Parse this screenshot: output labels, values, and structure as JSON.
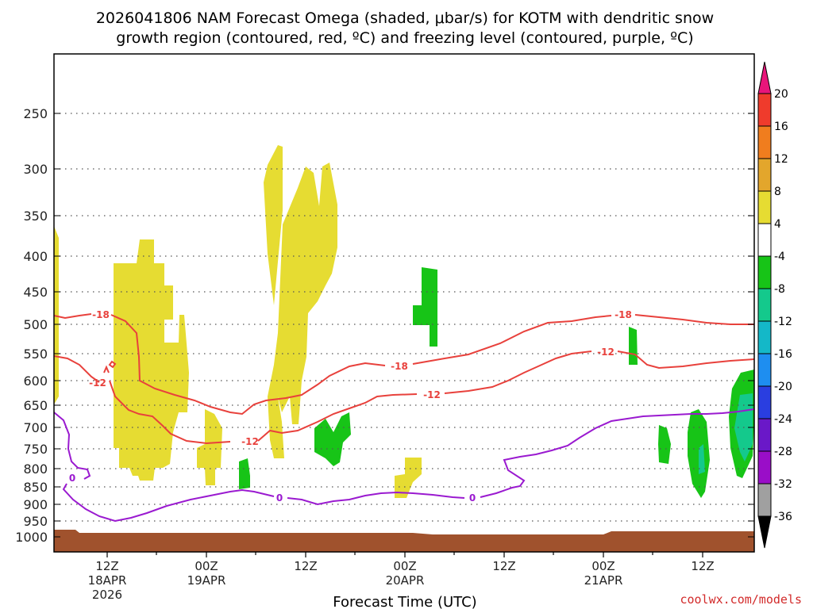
{
  "chart_data": {
    "type": "contour",
    "title_line1": "2026041806 NAM Forecast Omega (shaded, μbar/s) for KOTM with dendritic snow",
    "title_line2": "growth region (contoured, red, ºC) and freezing level (contoured, purple, ºC)",
    "xlabel": "Forecast Time (UTC)",
    "credit": "coolwx.com/models",
    "y_ticks": [
      "250",
      "300",
      "350",
      "400",
      "450",
      "500",
      "550",
      "600",
      "650",
      "700",
      "750",
      "800",
      "850",
      "900",
      "950",
      "1000"
    ],
    "x_ticks": [
      {
        "line1": "12Z",
        "line2": "18APR",
        "line3": "2026"
      },
      {
        "line1": "00Z",
        "line2": "19APR",
        "line3": ""
      },
      {
        "line1": "12Z",
        "line2": "",
        "line3": ""
      },
      {
        "line1": "00Z",
        "line2": "20APR",
        "line3": ""
      },
      {
        "line1": "12Z",
        "line2": "",
        "line3": ""
      },
      {
        "line1": "00Z",
        "line2": "21APR",
        "line3": ""
      },
      {
        "line1": "12Z",
        "line2": "",
        "line3": ""
      }
    ],
    "colorbar": {
      "labels": [
        "20",
        "16",
        "12",
        "8",
        "4",
        "-4",
        "-8",
        "-12",
        "-16",
        "-20",
        "-24",
        "-28",
        "-32",
        "-36"
      ],
      "colors": [
        "#e8157a",
        "#ef3b2c",
        "#f07d1e",
        "#e3a62c",
        "#e6dc32",
        "#ffffff",
        "#17c417",
        "#14c98c",
        "#14b8c8",
        "#1e8ef0",
        "#2a3ee0",
        "#6a18c8",
        "#9a0ec8",
        "#a0a0a0",
        "#000000"
      ]
    },
    "contour_labels": {
      "dgz_top": "-18",
      "dgz_bottom": "-12",
      "freezing": "0"
    },
    "colors": {
      "dgz": "#e8413c",
      "freezing": "#9a1ad0",
      "ground": "#a0522d",
      "gridline": "#555555"
    }
  }
}
